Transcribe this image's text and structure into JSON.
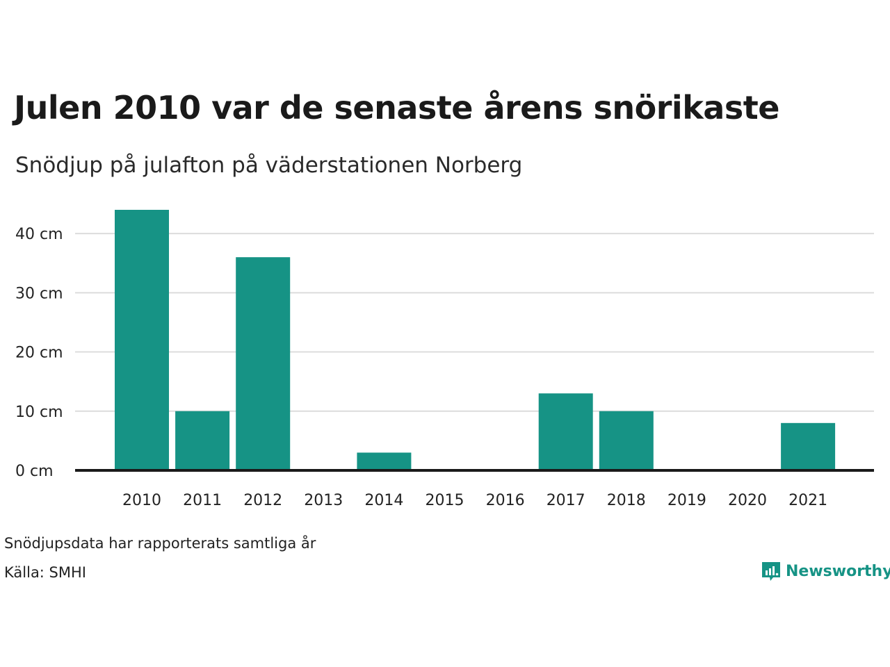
{
  "header": {
    "title": "Julen 2010 var de senaste årens snörikaste",
    "subtitle": "Snödjup på julafton på väderstationen Norberg"
  },
  "footer": {
    "note": "Snödjupsdata har rapporterats samtliga år",
    "source": "Källa: SMHI",
    "brand": "Newsworthy",
    "brand_icon": "newsworthy-logo-icon"
  },
  "colors": {
    "bar": "#169385",
    "grid": "#dcdcdc",
    "baseline": "#1a1a1a",
    "brand": "#169385"
  },
  "chart_data": {
    "type": "bar",
    "categories": [
      "2010",
      "2011",
      "2012",
      "2013",
      "2014",
      "2015",
      "2016",
      "2017",
      "2018",
      "2019",
      "2020",
      "2021"
    ],
    "values": [
      44,
      10,
      36,
      0,
      3,
      0,
      0,
      13,
      10,
      0,
      0,
      8
    ],
    "yticks": [
      0,
      10,
      20,
      30,
      40
    ],
    "ytick_labels": [
      "0 cm",
      "10 cm",
      "20 cm",
      "30 cm",
      "40 cm"
    ],
    "ylim": [
      0,
      44
    ],
    "unit": "cm",
    "grid": true
  }
}
